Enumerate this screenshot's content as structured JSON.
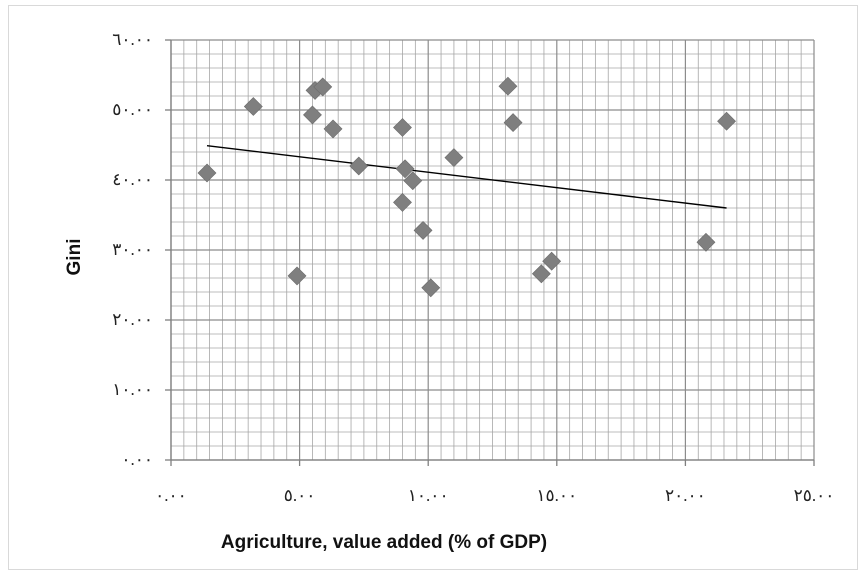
{
  "chart_data": {
    "type": "scatter",
    "title": "",
    "xlabel": "Agriculture, value added (% of GDP)",
    "ylabel": "Gini",
    "xlim": [
      0,
      25
    ],
    "ylim": [
      0,
      60
    ],
    "x_ticks": [
      0,
      5,
      10,
      15,
      20,
      25
    ],
    "y_ticks": [
      0,
      10,
      20,
      30,
      40,
      50,
      60
    ],
    "x_tick_labels": [
      "٠.٠٠",
      "٥.٠٠",
      "١٠.٠٠",
      "١٥.٠٠",
      "٢٠.٠٠",
      "٢٥.٠٠"
    ],
    "y_tick_labels": [
      "٠.٠٠",
      "١٠.٠٠",
      "٢٠.٠٠",
      "٣٠.٠٠",
      "٤٠.٠٠",
      "٥٠.٠٠",
      "٦٠.٠٠"
    ],
    "grid": true,
    "legend": "none",
    "points": [
      {
        "x": 1.4,
        "y": 41.0
      },
      {
        "x": 3.2,
        "y": 50.5
      },
      {
        "x": 4.9,
        "y": 26.3
      },
      {
        "x": 5.5,
        "y": 49.3
      },
      {
        "x": 5.6,
        "y": 52.8
      },
      {
        "x": 5.9,
        "y": 53.3
      },
      {
        "x": 6.3,
        "y": 47.3
      },
      {
        "x": 7.3,
        "y": 42.0
      },
      {
        "x": 9.0,
        "y": 47.5
      },
      {
        "x": 9.0,
        "y": 36.8
      },
      {
        "x": 9.1,
        "y": 41.6
      },
      {
        "x": 9.4,
        "y": 39.9
      },
      {
        "x": 9.8,
        "y": 32.8
      },
      {
        "x": 10.1,
        "y": 24.6
      },
      {
        "x": 11.0,
        "y": 43.2
      },
      {
        "x": 13.1,
        "y": 53.4
      },
      {
        "x": 13.3,
        "y": 48.2
      },
      {
        "x": 14.4,
        "y": 26.6
      },
      {
        "x": 14.8,
        "y": 28.4
      },
      {
        "x": 20.8,
        "y": 31.1
      },
      {
        "x": 21.6,
        "y": 48.4
      }
    ],
    "trendline": {
      "x": [
        1.4,
        21.6
      ],
      "y": [
        44.9,
        36.0
      ]
    },
    "colors": {
      "marker": "#7f7f7f",
      "grid": "#a6a6a6",
      "trendline": "#000000"
    }
  }
}
